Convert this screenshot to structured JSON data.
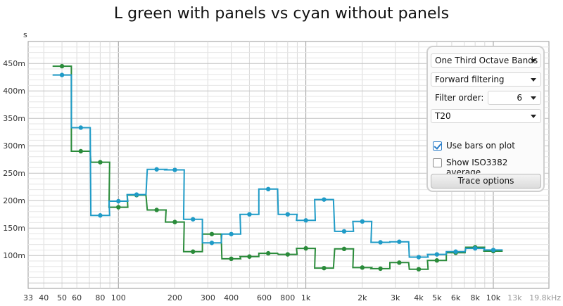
{
  "window": {
    "title": "L green with panels vs cyan without panels"
  },
  "controls": {
    "band_select": "One Third Octave Bands",
    "filter_mode": "Forward filtering",
    "filter_order_label": "Filter order:",
    "filter_order_value": "6",
    "metric": "T20",
    "use_bars_label": "Use bars on plot",
    "use_bars_checked": true,
    "iso_label": "Show ISO3382 average",
    "iso_checked": false,
    "trace_button": "Trace options"
  },
  "chart_data": {
    "type": "line",
    "title": "L green with panels vs cyan without panels",
    "ylabel": "s",
    "xlabel": "",
    "x_scale": "log",
    "xlim": [
      33,
      19800
    ],
    "ylim": [
      0.04,
      0.49
    ],
    "grid": true,
    "step": true,
    "x_tick_labels": [
      "33",
      "40",
      "50",
      "60",
      "80",
      "100",
      "200",
      "300",
      "400",
      "600",
      "800",
      "1k",
      "2k",
      "3k",
      "4k",
      "5k",
      "6k",
      "8k",
      "10k",
      "13k",
      "19.8kHz"
    ],
    "x_tick_values": [
      33,
      40,
      50,
      60,
      80,
      100,
      200,
      300,
      400,
      600,
      800,
      1000,
      2000,
      3000,
      4000,
      5000,
      6300,
      8000,
      10000,
      13000,
      19800
    ],
    "x_tick_dim": [
      "13k",
      "19.8kHz"
    ],
    "y_tick_labels": [
      "100m",
      "150m",
      "200m",
      "250m",
      "300m",
      "350m",
      "400m",
      "450m"
    ],
    "y_tick_values": [
      0.1,
      0.15,
      0.2,
      0.25,
      0.3,
      0.35,
      0.4,
      0.45
    ],
    "bands": [
      50,
      63,
      80,
      100,
      125,
      160,
      200,
      250,
      315,
      400,
      500,
      630,
      800,
      1000,
      1250,
      1600,
      2000,
      2500,
      3150,
      4000,
      5000,
      6300,
      8000,
      10000
    ],
    "series": [
      {
        "color": "#2a8b3a",
        "values": [
          0.445,
          0.29,
          0.27,
          0.188,
          0.21,
          0.183,
          0.161,
          0.107,
          0.139,
          0.094,
          0.098,
          0.104,
          0.102,
          0.113,
          0.077,
          0.112,
          0.078,
          0.076,
          0.087,
          0.075,
          0.091,
          0.105,
          0.115,
          0.108
        ]
      },
      {
        "color": "#1f9bc7",
        "values": [
          0.429,
          0.333,
          0.173,
          0.199,
          0.211,
          0.257,
          0.256,
          0.166,
          0.123,
          0.139,
          0.175,
          0.221,
          0.175,
          0.164,
          0.202,
          0.144,
          0.162,
          0.124,
          0.125,
          0.097,
          0.102,
          0.107,
          0.113,
          0.11
        ]
      }
    ]
  }
}
